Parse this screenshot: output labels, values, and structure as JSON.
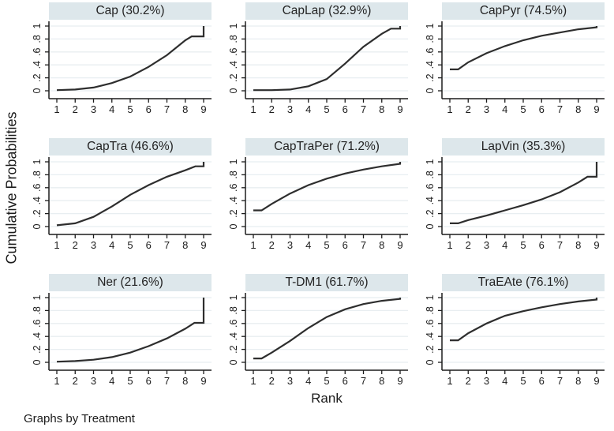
{
  "figure": {
    "ylabel": "Cumulative Probabilities",
    "xlabel": "Rank",
    "footer": "Graphs by Treatment"
  },
  "colors": {
    "strip_bg": "#dde7eb",
    "gridline": "#e8eef1",
    "axis": "#1c1c1c",
    "line": "#2e2e2e",
    "background": "#ffffff"
  },
  "axes": {
    "y_ticks": [
      "0",
      ".2",
      ".4",
      ".6",
      ".8",
      "1"
    ],
    "y_values": [
      0,
      0.2,
      0.4,
      0.6,
      0.8,
      1
    ],
    "x_ticks": [
      "1",
      "2",
      "3",
      "4",
      "5",
      "6",
      "7",
      "8",
      "9"
    ],
    "x_values": [
      1,
      2,
      3,
      4,
      5,
      6,
      7,
      8,
      9
    ],
    "ylim": [
      0,
      1
    ],
    "xlim": [
      1,
      9
    ],
    "grid": "horizontal"
  },
  "chart_data": [
    {
      "type": "line",
      "title": "Cap (30.2%)",
      "x": [
        1,
        2,
        3,
        4,
        5,
        6,
        7,
        8,
        9
      ],
      "values": [
        0.01,
        0.02,
        0.05,
        0.12,
        0.22,
        0.37,
        0.55,
        0.78,
        1.0
      ],
      "draw_points": [
        [
          1,
          0.01
        ],
        [
          2,
          0.02
        ],
        [
          3,
          0.05
        ],
        [
          4,
          0.12
        ],
        [
          5,
          0.22
        ],
        [
          6,
          0.37
        ],
        [
          7,
          0.55
        ],
        [
          8,
          0.78
        ],
        [
          8.35,
          0.84
        ],
        [
          9,
          0.84
        ],
        [
          9,
          1.0
        ]
      ]
    },
    {
      "type": "line",
      "title": "CapLap (32.9%)",
      "x": [
        1,
        2,
        3,
        4,
        5,
        6,
        7,
        8,
        9
      ],
      "values": [
        0.01,
        0.01,
        0.02,
        0.07,
        0.18,
        0.42,
        0.68,
        0.88,
        1.0
      ],
      "draw_points": [
        [
          1,
          0.01
        ],
        [
          2,
          0.01
        ],
        [
          3,
          0.02
        ],
        [
          4,
          0.07
        ],
        [
          5,
          0.18
        ],
        [
          6,
          0.42
        ],
        [
          7,
          0.68
        ],
        [
          8,
          0.88
        ],
        [
          8.5,
          0.96
        ],
        [
          9,
          0.96
        ],
        [
          9,
          1.0
        ]
      ]
    },
    {
      "type": "line",
      "title": "CapPyr (74.5%)",
      "x": [
        1,
        2,
        3,
        4,
        5,
        6,
        7,
        8,
        9
      ],
      "values": [
        0.33,
        0.44,
        0.58,
        0.69,
        0.78,
        0.85,
        0.9,
        0.95,
        1.0
      ],
      "draw_points": [
        [
          1,
          0.33
        ],
        [
          1.45,
          0.33
        ],
        [
          2,
          0.44
        ],
        [
          3,
          0.58
        ],
        [
          4,
          0.69
        ],
        [
          5,
          0.78
        ],
        [
          6,
          0.85
        ],
        [
          7,
          0.9
        ],
        [
          8,
          0.95
        ],
        [
          9,
          0.98
        ],
        [
          9,
          1.0
        ]
      ]
    },
    {
      "type": "line",
      "title": "CapTra (46.6%)",
      "x": [
        1,
        2,
        3,
        4,
        5,
        6,
        7,
        8,
        9
      ],
      "values": [
        0.02,
        0.05,
        0.15,
        0.31,
        0.49,
        0.64,
        0.77,
        0.87,
        1.0
      ],
      "draw_points": [
        [
          1,
          0.02
        ],
        [
          2,
          0.05
        ],
        [
          3,
          0.15
        ],
        [
          4,
          0.31
        ],
        [
          5,
          0.49
        ],
        [
          6,
          0.64
        ],
        [
          7,
          0.77
        ],
        [
          8,
          0.87
        ],
        [
          8.55,
          0.93
        ],
        [
          9,
          0.93
        ],
        [
          9,
          1.0
        ]
      ]
    },
    {
      "type": "line",
      "title": "CapTraPer (71.2%)",
      "x": [
        1,
        2,
        3,
        4,
        5,
        6,
        7,
        8,
        9
      ],
      "values": [
        0.25,
        0.35,
        0.51,
        0.64,
        0.74,
        0.82,
        0.88,
        0.93,
        1.0
      ],
      "draw_points": [
        [
          1,
          0.25
        ],
        [
          1.45,
          0.25
        ],
        [
          2,
          0.35
        ],
        [
          3,
          0.51
        ],
        [
          4,
          0.64
        ],
        [
          5,
          0.74
        ],
        [
          6,
          0.82
        ],
        [
          7,
          0.88
        ],
        [
          8,
          0.93
        ],
        [
          9,
          0.97
        ],
        [
          9,
          1.0
        ]
      ]
    },
    {
      "type": "line",
      "title": "LapVin (35.3%)",
      "x": [
        1,
        2,
        3,
        4,
        5,
        6,
        7,
        8,
        9
      ],
      "values": [
        0.05,
        0.1,
        0.17,
        0.25,
        0.33,
        0.42,
        0.53,
        0.68,
        1.0
      ],
      "draw_points": [
        [
          1,
          0.05
        ],
        [
          1.45,
          0.05
        ],
        [
          2,
          0.1
        ],
        [
          3,
          0.17
        ],
        [
          4,
          0.25
        ],
        [
          5,
          0.33
        ],
        [
          6,
          0.42
        ],
        [
          7,
          0.53
        ],
        [
          8,
          0.68
        ],
        [
          8.5,
          0.77
        ],
        [
          9,
          0.77
        ],
        [
          9,
          1.0
        ]
      ]
    },
    {
      "type": "line",
      "title": "Ner (21.6%)",
      "x": [
        1,
        2,
        3,
        4,
        5,
        6,
        7,
        8,
        9
      ],
      "values": [
        0.01,
        0.02,
        0.04,
        0.08,
        0.15,
        0.25,
        0.37,
        0.52,
        1.0
      ],
      "draw_points": [
        [
          1,
          0.01
        ],
        [
          2,
          0.02
        ],
        [
          3,
          0.04
        ],
        [
          4,
          0.08
        ],
        [
          5,
          0.15
        ],
        [
          6,
          0.25
        ],
        [
          7,
          0.37
        ],
        [
          8,
          0.52
        ],
        [
          8.5,
          0.61
        ],
        [
          9,
          0.61
        ],
        [
          9,
          1.0
        ]
      ]
    },
    {
      "type": "line",
      "title": "T-DM1 (61.7%)",
      "x": [
        1,
        2,
        3,
        4,
        5,
        6,
        7,
        8,
        9
      ],
      "values": [
        0.06,
        0.15,
        0.33,
        0.53,
        0.7,
        0.82,
        0.9,
        0.95,
        1.0
      ],
      "draw_points": [
        [
          1,
          0.06
        ],
        [
          1.45,
          0.06
        ],
        [
          2,
          0.15
        ],
        [
          3,
          0.33
        ],
        [
          4,
          0.53
        ],
        [
          5,
          0.7
        ],
        [
          6,
          0.82
        ],
        [
          7,
          0.9
        ],
        [
          8,
          0.95
        ],
        [
          9,
          0.98
        ],
        [
          9,
          1.0
        ]
      ]
    },
    {
      "type": "line",
      "title": "TraEAte (76.1%)",
      "x": [
        1,
        2,
        3,
        4,
        5,
        6,
        7,
        8,
        9
      ],
      "values": [
        0.34,
        0.45,
        0.6,
        0.72,
        0.79,
        0.85,
        0.9,
        0.94,
        1.0
      ],
      "draw_points": [
        [
          1,
          0.34
        ],
        [
          1.45,
          0.34
        ],
        [
          2,
          0.45
        ],
        [
          3,
          0.6
        ],
        [
          4,
          0.72
        ],
        [
          5,
          0.79
        ],
        [
          6,
          0.85
        ],
        [
          7,
          0.9
        ],
        [
          8,
          0.94
        ],
        [
          9,
          0.97
        ],
        [
          9,
          1.0
        ]
      ]
    }
  ]
}
